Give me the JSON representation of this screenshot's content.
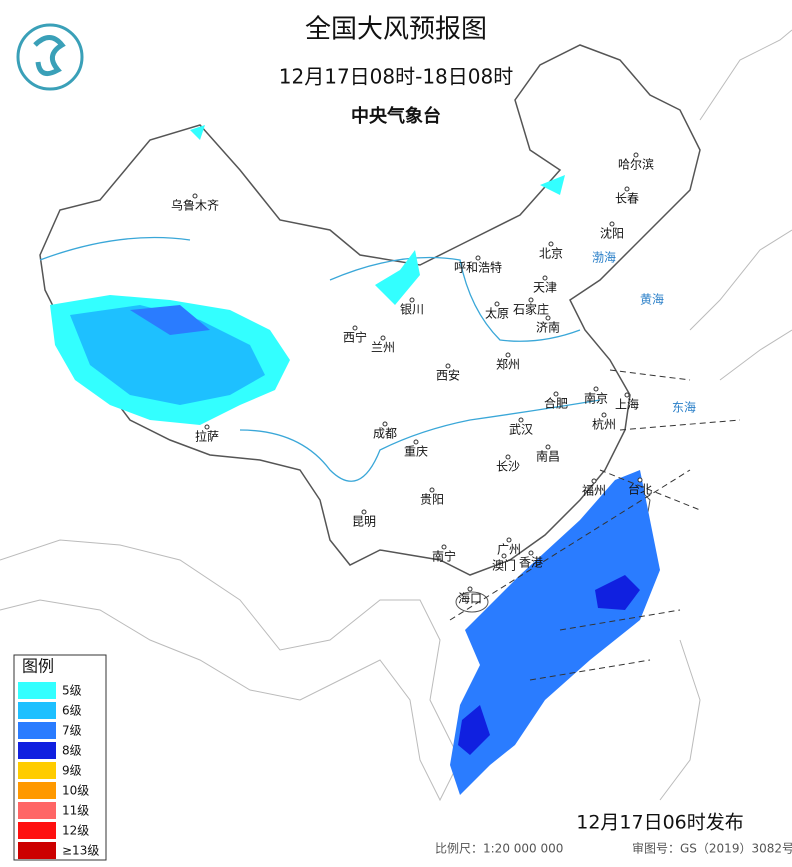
{
  "header": {
    "title": "全国大风预报图",
    "period": "12月17日08时-18日08时",
    "issuer": "中央气象台"
  },
  "cities": [
    "乌鲁木齐",
    "哈尔滨",
    "长春",
    "沈阳",
    "北京",
    "呼和浩特",
    "天津",
    "银川",
    "太原",
    "石家庄",
    "济南",
    "西宁",
    "兰州",
    "郑州",
    "西安",
    "南京",
    "合肥",
    "上海",
    "杭州",
    "拉萨",
    "成都",
    "武汉",
    "重庆",
    "南昌",
    "长沙",
    "福州",
    "台北",
    "贵阳",
    "昆明",
    "南宁",
    "广州",
    "香港",
    "澳门",
    "海口"
  ],
  "seas": [
    "渤海",
    "黄海",
    "东海"
  ],
  "legend": {
    "title": "图例",
    "items": [
      {
        "label": "5级",
        "color": "#33ffff"
      },
      {
        "label": "6级",
        "color": "#1ec0ff"
      },
      {
        "label": "7级",
        "color": "#2a7cff"
      },
      {
        "label": "8级",
        "color": "#1020e0"
      },
      {
        "label": "9级",
        "color": "#ffcc00"
      },
      {
        "label": "10级",
        "color": "#ff9900"
      },
      {
        "label": "11级",
        "color": "#ff6666"
      },
      {
        "label": "12级",
        "color": "#ff1010"
      },
      {
        "label": "≥13级",
        "color": "#cc0000"
      }
    ]
  },
  "footer": {
    "issued": "12月17日06时发布",
    "scale": "比例尺：1:20 000 000",
    "approval": "审图号：GS（2019）3082号"
  }
}
